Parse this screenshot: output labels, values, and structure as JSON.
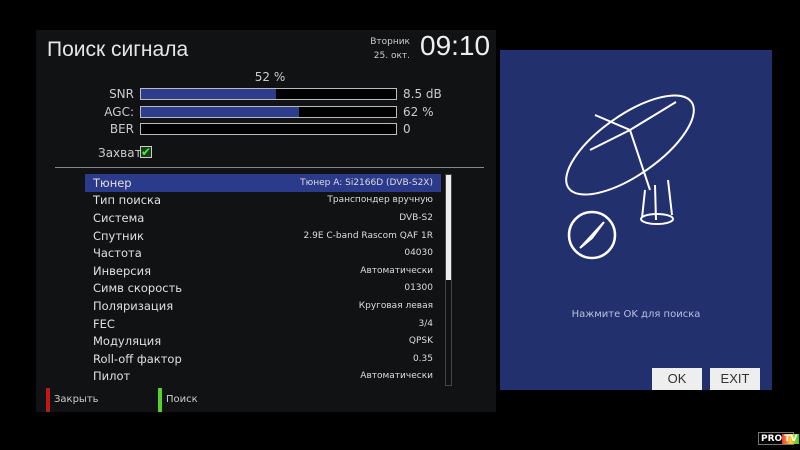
{
  "header": {
    "title": "Поиск сигнала",
    "day": "Вторник",
    "date": "25. окт.",
    "time": "09:10"
  },
  "signal": {
    "quality": "52 %",
    "snr": {
      "label": "SNR",
      "value": "8.5 dB",
      "level": 0.53
    },
    "agc": {
      "label": "AGC:",
      "value": "62 %",
      "level": 0.62
    },
    "ber": {
      "label": "BER",
      "value": "0",
      "level": 0
    },
    "lock_label": "Захват",
    "locked": true
  },
  "list": [
    {
      "key": "Тюнер",
      "value": "Тюнер A: Si2166D (DVB-S2X)"
    },
    {
      "key": "Тип поиска",
      "value": "Транспондер вручную"
    },
    {
      "key": "Система",
      "value": "DVB-S2"
    },
    {
      "key": "Спутник",
      "value": "2.9E C-band Rascom QAF 1R"
    },
    {
      "key": "Частота",
      "value": "04030"
    },
    {
      "key": "Инверсия",
      "value": "Автоматически"
    },
    {
      "key": "Симв скорость",
      "value": "01300"
    },
    {
      "key": "Поляризация",
      "value": "Круговая левая"
    },
    {
      "key": "FEC",
      "value": "3/4"
    },
    {
      "key": "Модуляция",
      "value": "QPSK"
    },
    {
      "key": "Roll-off фактор",
      "value": "0.35"
    },
    {
      "key": "Пилот",
      "value": "Автоматически"
    }
  ],
  "footer": {
    "red": "Закрыть",
    "green": "Поиск"
  },
  "dialog": {
    "prompt": "Нажмите OK для поиска",
    "ok": "OK",
    "exit": "EXIT"
  },
  "watermark": "PRO TV",
  "colors": {
    "highlight": "#2b3a8a",
    "dialog_bg": "#22306e",
    "red_key": "#c01818",
    "green_key": "#5ad02a"
  }
}
